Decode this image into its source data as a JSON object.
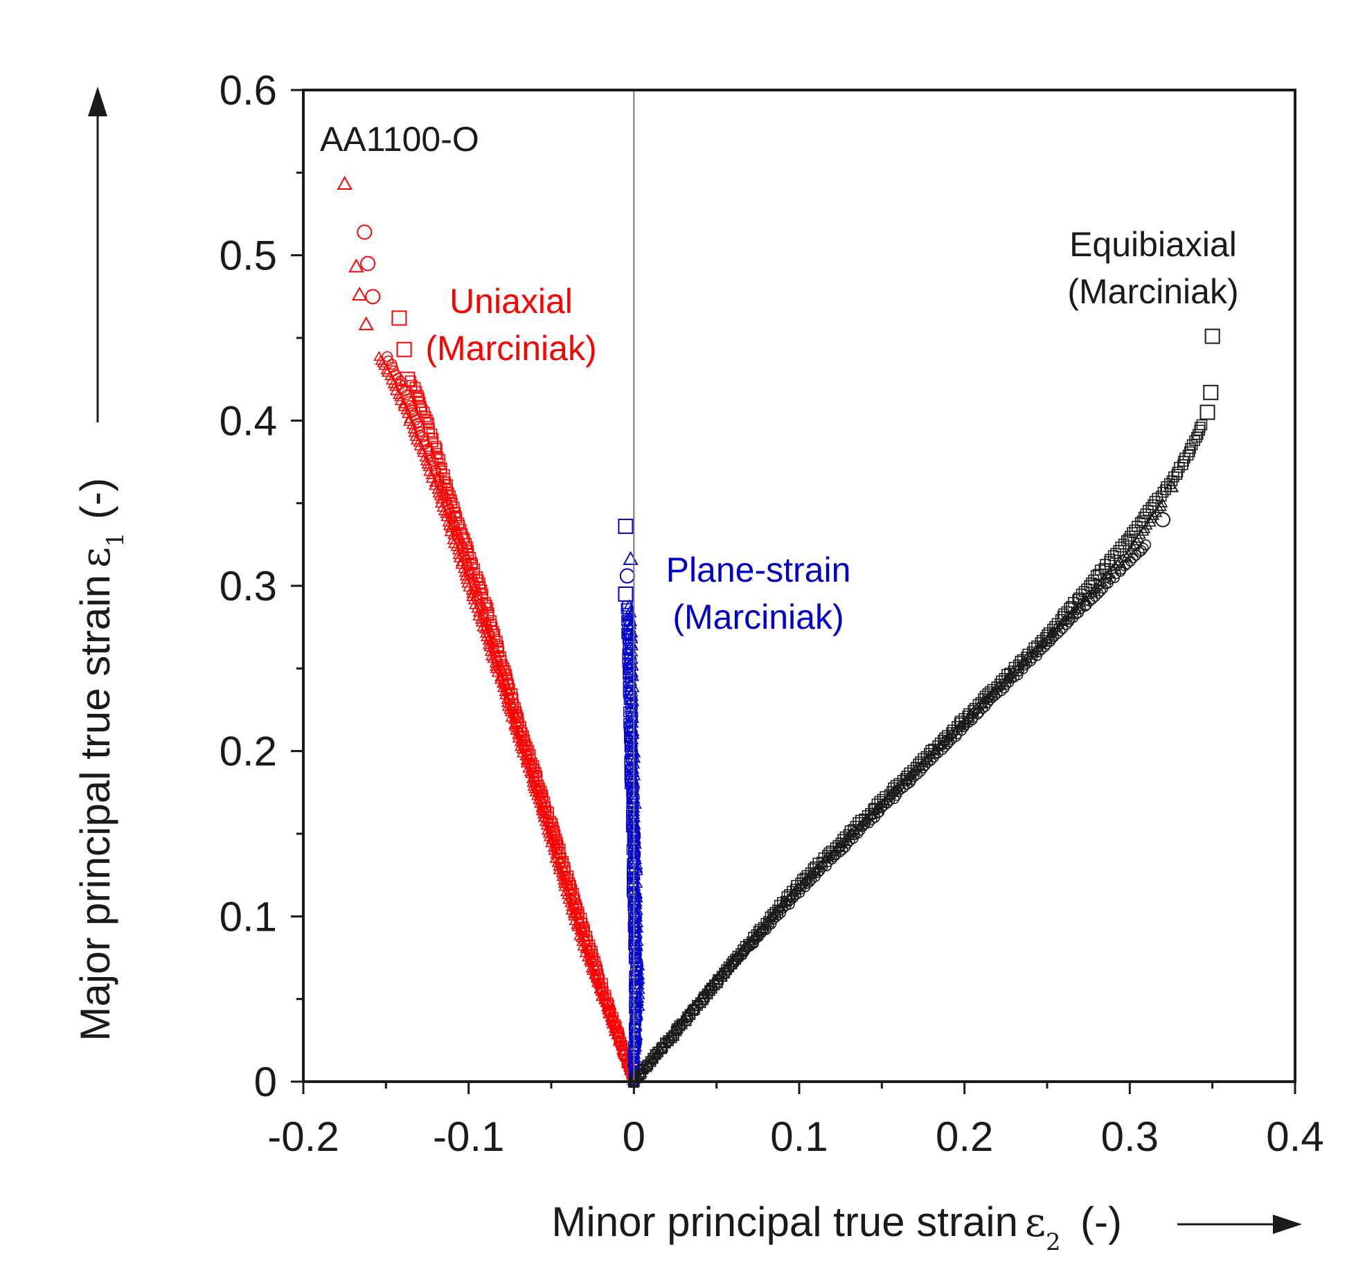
{
  "chart_data": {
    "type": "scatter",
    "title": "",
    "xlabel": "Minor principal true strain",
    "xlabel_symbol": "ε",
    "xlabel_subscript": "2",
    "xlabel_unit": "(-)",
    "ylabel": "Major principal true strain",
    "ylabel_symbol": "ε",
    "ylabel_subscript": "1",
    "ylabel_unit": "(-)",
    "xlim": [
      -0.2,
      0.4
    ],
    "ylim": [
      0,
      0.6
    ],
    "xticks": [
      -0.2,
      -0.1,
      0,
      0.1,
      0.2,
      0.3,
      0.4
    ],
    "xtick_labels": [
      "-0.2",
      "-0.1",
      "0",
      "0.1",
      "0.2",
      "0.3",
      "0.4"
    ],
    "yticks": [
      0,
      0.1,
      0.2,
      0.3,
      0.4,
      0.5,
      0.6
    ],
    "ytick_labels": [
      "0",
      "0.1",
      "0.2",
      "0.3",
      "0.4",
      "0.5",
      "0.6"
    ],
    "grid": false,
    "zero_line_x": 0,
    "material_label": "AA1100-O",
    "annotations": [
      {
        "id": "uniaxial",
        "lines": [
          "Uniaxial",
          "(Marciniak)"
        ],
        "color": "#ff0000"
      },
      {
        "id": "plane-strain",
        "lines": [
          "Plane-strain",
          "(Marciniak)"
        ],
        "color": "#0000cc"
      },
      {
        "id": "equibiaxial",
        "lines": [
          "Equibiaxial",
          "(Marciniak)"
        ],
        "color": "#1a1a1a"
      }
    ],
    "series": [
      {
        "name": "Uniaxial (Marciniak) - square",
        "group": "Uniaxial",
        "marker": "square",
        "color": "#ff0000",
        "end": [
          -0.142,
          0.462
        ],
        "path": [
          [
            0,
            0
          ],
          [
            -0.02,
            0.06
          ],
          [
            -0.045,
            0.14
          ],
          [
            -0.07,
            0.22
          ],
          [
            -0.09,
            0.29
          ],
          [
            -0.11,
            0.35
          ],
          [
            -0.125,
            0.4
          ],
          [
            -0.135,
            0.425
          ]
        ],
        "extra": [
          [
            -0.137,
            0.425
          ],
          [
            -0.139,
            0.443
          ],
          [
            -0.142,
            0.462
          ]
        ]
      },
      {
        "name": "Uniaxial (Marciniak) - circle",
        "group": "Uniaxial",
        "marker": "circle",
        "color": "#ff0000",
        "end": [
          -0.163,
          0.514
        ],
        "path": [
          [
            0,
            0
          ],
          [
            -0.025,
            0.07
          ],
          [
            -0.05,
            0.15
          ],
          [
            -0.075,
            0.23
          ],
          [
            -0.1,
            0.31
          ],
          [
            -0.12,
            0.37
          ],
          [
            -0.14,
            0.42
          ],
          [
            -0.15,
            0.44
          ]
        ],
        "extra": [
          [
            -0.158,
            0.475
          ],
          [
            -0.161,
            0.495
          ],
          [
            -0.163,
            0.514
          ]
        ]
      },
      {
        "name": "Uniaxial (Marciniak) - triangle",
        "group": "Uniaxial",
        "marker": "triangle",
        "color": "#ff0000",
        "end": [
          -0.175,
          0.543
        ],
        "path": [
          [
            0,
            0
          ],
          [
            -0.03,
            0.08
          ],
          [
            -0.055,
            0.16
          ],
          [
            -0.08,
            0.24
          ],
          [
            -0.1,
            0.3
          ],
          [
            -0.12,
            0.36
          ],
          [
            -0.14,
            0.41
          ],
          [
            -0.155,
            0.44
          ]
        ],
        "extra": [
          [
            -0.162,
            0.458
          ],
          [
            -0.166,
            0.476
          ],
          [
            -0.168,
            0.493
          ],
          [
            -0.175,
            0.543
          ]
        ]
      },
      {
        "name": "Plane-strain (Marciniak) - square",
        "group": "Plane-strain",
        "marker": "square",
        "color": "#0000cc",
        "end": [
          -0.005,
          0.336
        ],
        "path": [
          [
            0,
            0
          ],
          [
            0.001,
            0.05
          ],
          [
            0.0,
            0.1
          ],
          [
            -0.001,
            0.15
          ],
          [
            -0.002,
            0.2
          ],
          [
            -0.003,
            0.25
          ],
          [
            -0.004,
            0.29
          ]
        ],
        "extra": [
          [
            -0.005,
            0.295
          ],
          [
            -0.005,
            0.336
          ]
        ]
      },
      {
        "name": "Plane-strain (Marciniak) - circle",
        "group": "Plane-strain",
        "marker": "circle",
        "color": "#0000cc",
        "end": [
          -0.004,
          0.306
        ],
        "path": [
          [
            0,
            0
          ],
          [
            0.002,
            0.05
          ],
          [
            0.001,
            0.1
          ],
          [
            0.0,
            0.15
          ],
          [
            -0.001,
            0.2
          ],
          [
            -0.002,
            0.25
          ],
          [
            -0.003,
            0.28
          ]
        ],
        "extra": [
          [
            -0.004,
            0.306
          ]
        ]
      },
      {
        "name": "Plane-strain (Marciniak) - triangle",
        "group": "Plane-strain",
        "marker": "triangle",
        "color": "#0000cc",
        "end": [
          -0.002,
          0.316
        ],
        "path": [
          [
            0,
            0
          ],
          [
            0.003,
            0.05
          ],
          [
            0.002,
            0.1
          ],
          [
            0.001,
            0.15
          ],
          [
            0.0,
            0.2
          ],
          [
            -0.001,
            0.25
          ],
          [
            -0.002,
            0.29
          ]
        ],
        "extra": [
          [
            -0.002,
            0.316
          ]
        ]
      },
      {
        "name": "Equibiaxial (Marciniak) - square",
        "group": "Equibiaxial",
        "marker": "square",
        "color": "#1a1a1a",
        "end": [
          0.35,
          0.451
        ],
        "path": [
          [
            0,
            0
          ],
          [
            0.05,
            0.06
          ],
          [
            0.1,
            0.12
          ],
          [
            0.15,
            0.17
          ],
          [
            0.2,
            0.22
          ],
          [
            0.25,
            0.27
          ],
          [
            0.3,
            0.33
          ],
          [
            0.33,
            0.37
          ],
          [
            0.345,
            0.4
          ]
        ],
        "extra": [
          [
            0.347,
            0.405
          ],
          [
            0.349,
            0.417
          ],
          [
            0.35,
            0.451
          ]
        ]
      },
      {
        "name": "Equibiaxial (Marciniak) - circle",
        "group": "Equibiaxial",
        "marker": "circle",
        "color": "#1a1a1a",
        "end": [
          0.32,
          0.34
        ],
        "path": [
          [
            0,
            0
          ],
          [
            0.05,
            0.06
          ],
          [
            0.1,
            0.115
          ],
          [
            0.15,
            0.165
          ],
          [
            0.2,
            0.215
          ],
          [
            0.25,
            0.265
          ],
          [
            0.29,
            0.305
          ],
          [
            0.31,
            0.325
          ]
        ],
        "extra": [
          [
            0.32,
            0.34
          ]
        ]
      },
      {
        "name": "Equibiaxial (Marciniak) - triangle",
        "group": "Equibiaxial",
        "marker": "triangle",
        "color": "#1a1a1a",
        "end": [
          0.325,
          0.36
        ],
        "path": [
          [
            0,
            0
          ],
          [
            0.05,
            0.062
          ],
          [
            0.1,
            0.118
          ],
          [
            0.15,
            0.168
          ],
          [
            0.2,
            0.218
          ],
          [
            0.25,
            0.268
          ],
          [
            0.3,
            0.32
          ],
          [
            0.32,
            0.35
          ]
        ],
        "extra": [
          [
            0.325,
            0.36
          ]
        ]
      }
    ]
  }
}
